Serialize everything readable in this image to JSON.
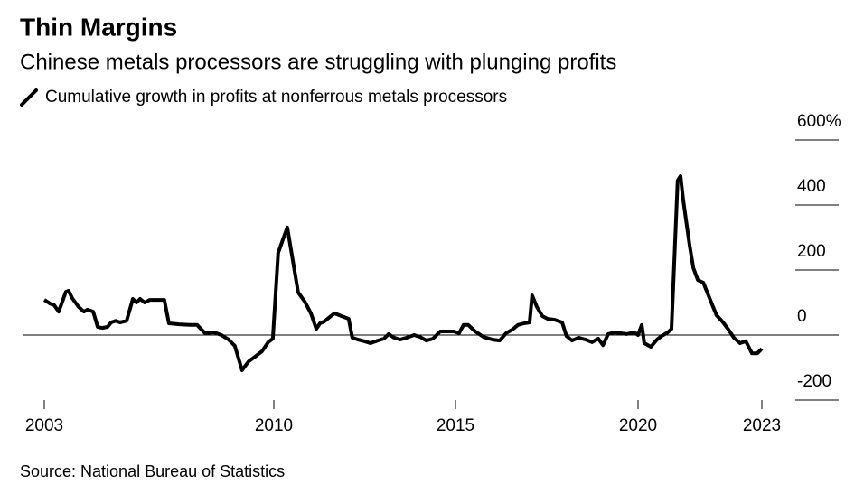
{
  "chart_data": {
    "type": "line",
    "title": "Thin Margins",
    "subtitle": "Chinese metals processors are struggling with plunging profits",
    "source": "Source: National Bureau of Statistics",
    "x": [
      2003.0,
      2003.17,
      2003.3,
      2003.44,
      2003.66,
      2003.74,
      2003.85,
      2004.05,
      2004.21,
      2004.32,
      2004.49,
      2004.63,
      2004.76,
      2004.93,
      2005.04,
      2005.18,
      2005.31,
      2005.51,
      2005.7,
      2005.81,
      2005.92,
      2006.06,
      2006.22,
      2006.42,
      2006.66,
      2006.8,
      2007.11,
      2007.44,
      2007.66,
      2007.9,
      2008.18,
      2008.4,
      2008.62,
      2008.81,
      2009.03,
      2009.23,
      2009.42,
      2009.64,
      2009.83,
      2009.97,
      2010.12,
      2010.37,
      2010.67,
      2010.85,
      2011.02,
      2011.17,
      2011.27,
      2011.39,
      2011.57,
      2011.67,
      2011.87,
      2012.06,
      2012.16,
      2012.31,
      2012.49,
      2012.66,
      2012.86,
      2013.03,
      2013.16,
      2013.31,
      2013.48,
      2013.66,
      2013.86,
      2014.03,
      2014.2,
      2014.38,
      2014.58,
      2014.78,
      2014.95,
      2015.1,
      2015.22,
      2015.35,
      2015.54,
      2015.77,
      2016.01,
      2016.21,
      2016.39,
      2016.56,
      2016.71,
      2016.88,
      2017.03,
      2017.1,
      2017.23,
      2017.38,
      2017.52,
      2017.72,
      2017.92,
      2018.04,
      2018.19,
      2018.37,
      2018.56,
      2018.74,
      2018.91,
      2019.04,
      2019.18,
      2019.36,
      2019.5,
      2019.68,
      2019.9,
      2020.0,
      2020.09,
      2020.15,
      2020.31,
      2020.46,
      2020.57,
      2020.72,
      2020.81,
      2020.96,
      2021.03,
      2021.09,
      2021.25,
      2021.34,
      2021.45,
      2021.58,
      2021.75,
      2021.9,
      2022.06,
      2022.19,
      2022.32,
      2022.47,
      2022.61,
      2022.76,
      2022.89,
      2023.0
    ],
    "series": [
      {
        "name": "Cumulative growth in profits at nonferrous metals processors",
        "color": "#000000",
        "values": [
          108,
          97,
          92,
          72,
          133,
          136,
          114,
          86,
          72,
          78,
          72,
          25,
          22,
          25,
          39,
          44,
          39,
          44,
          111,
          100,
          111,
          100,
          108,
          108,
          108,
          36,
          33,
          31,
          31,
          6,
          8,
          0,
          -14,
          -33,
          -108,
          -81,
          -67,
          -50,
          -22,
          -11,
          253,
          331,
          131,
          103,
          67,
          19,
          36,
          42,
          58,
          67,
          58,
          50,
          -8,
          -14,
          -19,
          -25,
          -17,
          -11,
          3,
          -8,
          -14,
          -8,
          0,
          -6,
          -17,
          -11,
          11,
          11,
          11,
          6,
          31,
          31,
          11,
          -6,
          -14,
          -17,
          6,
          17,
          31,
          36,
          39,
          122,
          86,
          58,
          50,
          47,
          39,
          -3,
          -17,
          -8,
          -14,
          -22,
          -11,
          -31,
          3,
          8,
          6,
          3,
          8,
          0,
          31,
          -25,
          -36,
          -14,
          -3,
          8,
          19,
          475,
          489,
          419,
          275,
          206,
          169,
          161,
          108,
          61,
          39,
          17,
          -8,
          -25,
          -19,
          -56,
          -56,
          -42
        ]
      }
    ],
    "xlim": [
      2003,
      2023
    ],
    "xticks": [
      2003,
      2010,
      2015,
      2020,
      2023
    ],
    "ylim": [
      -200,
      600
    ],
    "yticks": [
      {
        "value": 600,
        "label": "600%"
      },
      400,
      200,
      0,
      -200
    ]
  }
}
